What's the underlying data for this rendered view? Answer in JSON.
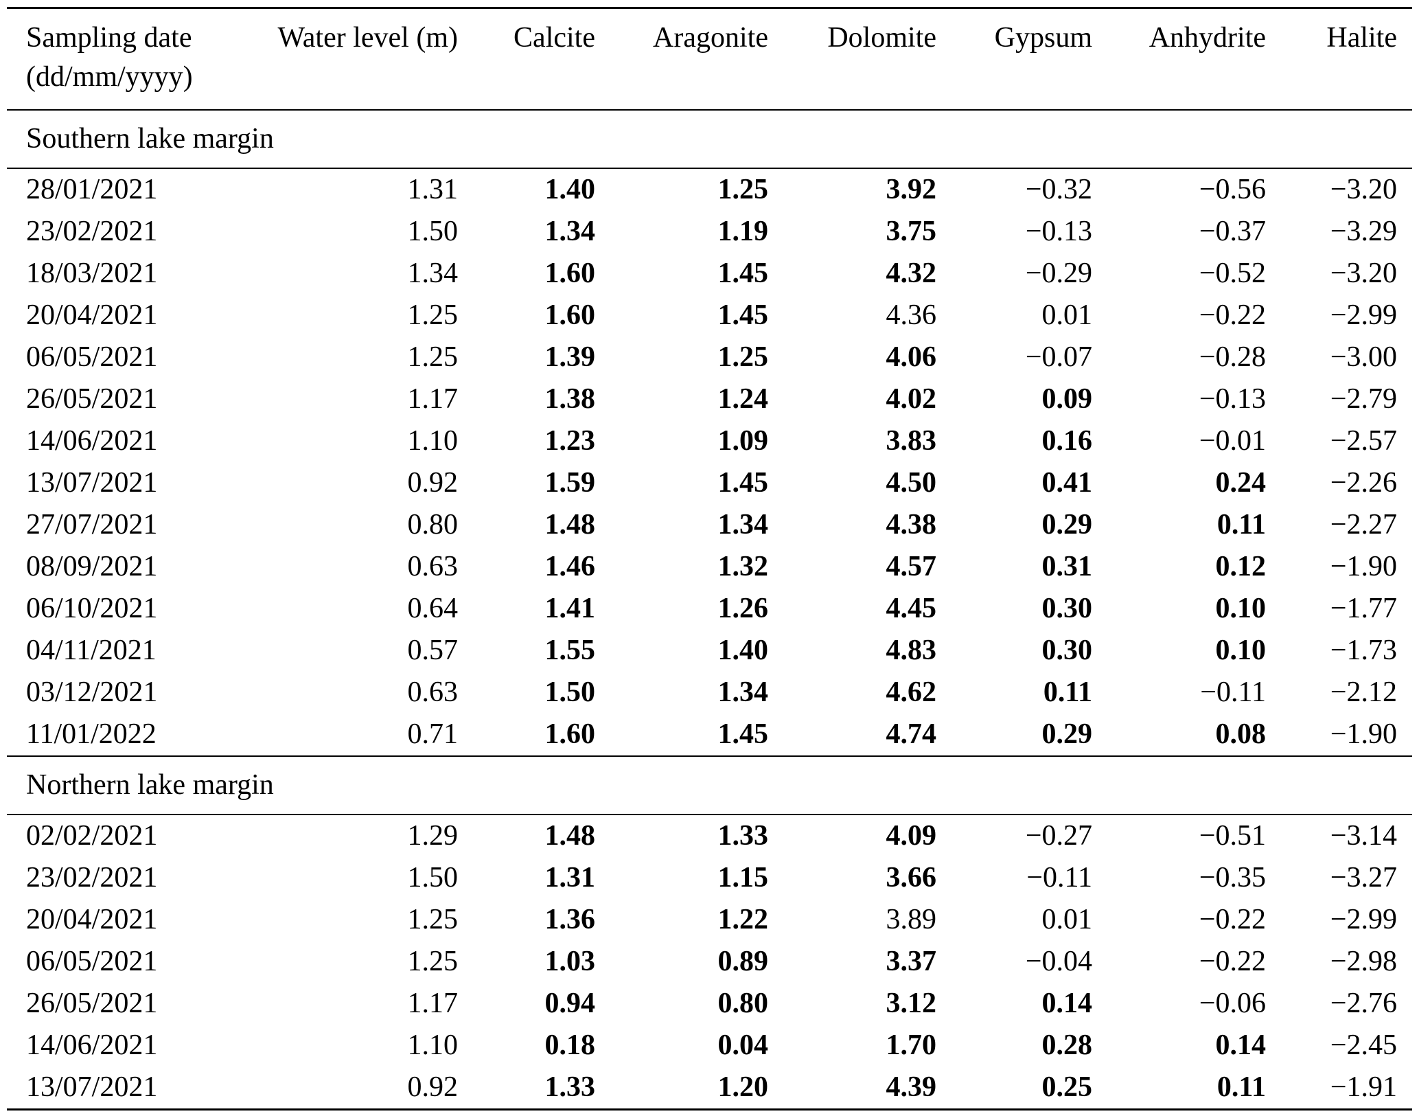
{
  "page": {
    "background": "#ffffff",
    "text_color": "#000000"
  },
  "table": {
    "columns": [
      {
        "label": "Sampling date",
        "sublabel": "(dd/mm/yyyy)",
        "align": "left"
      },
      {
        "label": "Water level (m)",
        "align": "right"
      },
      {
        "label": "Calcite",
        "align": "right"
      },
      {
        "label": "Aragonite",
        "align": "right"
      },
      {
        "label": "Dolomite",
        "align": "right"
      },
      {
        "label": "Gypsum",
        "align": "right"
      },
      {
        "label": "Anhydrite",
        "align": "right"
      },
      {
        "label": "Halite",
        "align": "right"
      }
    ],
    "sections": [
      {
        "title": "Southern lake margin",
        "rows": [
          {
            "cells": [
              {
                "t": "28/01/2021"
              },
              {
                "t": "1.31"
              },
              {
                "t": "1.40",
                "bold": true
              },
              {
                "t": "1.25",
                "bold": true
              },
              {
                "t": "3.92",
                "bold": true
              },
              {
                "t": "−0.32"
              },
              {
                "t": "−0.56"
              },
              {
                "t": "−3.20"
              }
            ]
          },
          {
            "cells": [
              {
                "t": "23/02/2021"
              },
              {
                "t": "1.50"
              },
              {
                "t": "1.34",
                "bold": true
              },
              {
                "t": "1.19",
                "bold": true
              },
              {
                "t": "3.75",
                "bold": true
              },
              {
                "t": "−0.13"
              },
              {
                "t": "−0.37"
              },
              {
                "t": "−3.29"
              }
            ]
          },
          {
            "cells": [
              {
                "t": "18/03/2021"
              },
              {
                "t": "1.34"
              },
              {
                "t": "1.60",
                "bold": true
              },
              {
                "t": "1.45",
                "bold": true
              },
              {
                "t": "4.32",
                "bold": true
              },
              {
                "t": "−0.29"
              },
              {
                "t": "−0.52"
              },
              {
                "t": "−3.20"
              }
            ]
          },
          {
            "cells": [
              {
                "t": "20/04/2021"
              },
              {
                "t": "1.25"
              },
              {
                "t": "1.60",
                "bold": true
              },
              {
                "t": "1.45",
                "bold": true
              },
              {
                "t": "4.36"
              },
              {
                "t": "0.01"
              },
              {
                "t": "−0.22"
              },
              {
                "t": "−2.99"
              }
            ]
          },
          {
            "cells": [
              {
                "t": "06/05/2021"
              },
              {
                "t": "1.25"
              },
              {
                "t": "1.39",
                "bold": true
              },
              {
                "t": "1.25",
                "bold": true
              },
              {
                "t": "4.06",
                "bold": true
              },
              {
                "t": "−0.07"
              },
              {
                "t": "−0.28"
              },
              {
                "t": "−3.00"
              }
            ]
          },
          {
            "cells": [
              {
                "t": "26/05/2021"
              },
              {
                "t": "1.17"
              },
              {
                "t": "1.38",
                "bold": true
              },
              {
                "t": "1.24",
                "bold": true
              },
              {
                "t": "4.02",
                "bold": true
              },
              {
                "t": "0.09",
                "bold": true
              },
              {
                "t": "−0.13"
              },
              {
                "t": "−2.79"
              }
            ]
          },
          {
            "cells": [
              {
                "t": "14/06/2021"
              },
              {
                "t": "1.10"
              },
              {
                "t": "1.23",
                "bold": true
              },
              {
                "t": "1.09",
                "bold": true
              },
              {
                "t": "3.83",
                "bold": true
              },
              {
                "t": "0.16",
                "bold": true
              },
              {
                "t": "−0.01"
              },
              {
                "t": "−2.57"
              }
            ]
          },
          {
            "cells": [
              {
                "t": "13/07/2021"
              },
              {
                "t": "0.92"
              },
              {
                "t": "1.59",
                "bold": true
              },
              {
                "t": "1.45",
                "bold": true
              },
              {
                "t": "4.50",
                "bold": true
              },
              {
                "t": "0.41",
                "bold": true
              },
              {
                "t": "0.24",
                "bold": true
              },
              {
                "t": "−2.26"
              }
            ]
          },
          {
            "cells": [
              {
                "t": "27/07/2021"
              },
              {
                "t": "0.80"
              },
              {
                "t": "1.48",
                "bold": true
              },
              {
                "t": "1.34",
                "bold": true
              },
              {
                "t": "4.38",
                "bold": true
              },
              {
                "t": "0.29",
                "bold": true
              },
              {
                "t": "0.11",
                "bold": true
              },
              {
                "t": "−2.27"
              }
            ]
          },
          {
            "cells": [
              {
                "t": "08/09/2021"
              },
              {
                "t": "0.63"
              },
              {
                "t": "1.46",
                "bold": true
              },
              {
                "t": "1.32",
                "bold": true
              },
              {
                "t": "4.57",
                "bold": true
              },
              {
                "t": "0.31",
                "bold": true
              },
              {
                "t": "0.12",
                "bold": true
              },
              {
                "t": "−1.90"
              }
            ]
          },
          {
            "cells": [
              {
                "t": "06/10/2021"
              },
              {
                "t": "0.64"
              },
              {
                "t": "1.41",
                "bold": true
              },
              {
                "t": "1.26",
                "bold": true
              },
              {
                "t": "4.45",
                "bold": true
              },
              {
                "t": "0.30",
                "bold": true
              },
              {
                "t": "0.10",
                "bold": true
              },
              {
                "t": "−1.77"
              }
            ]
          },
          {
            "cells": [
              {
                "t": "04/11/2021"
              },
              {
                "t": "0.57"
              },
              {
                "t": "1.55",
                "bold": true
              },
              {
                "t": "1.40",
                "bold": true
              },
              {
                "t": "4.83",
                "bold": true
              },
              {
                "t": "0.30",
                "bold": true
              },
              {
                "t": "0.10",
                "bold": true
              },
              {
                "t": "−1.73"
              }
            ]
          },
          {
            "cells": [
              {
                "t": "03/12/2021"
              },
              {
                "t": "0.63"
              },
              {
                "t": "1.50",
                "bold": true
              },
              {
                "t": "1.34",
                "bold": true
              },
              {
                "t": "4.62",
                "bold": true
              },
              {
                "t": "0.11",
                "bold": true
              },
              {
                "t": "−0.11"
              },
              {
                "t": "−2.12"
              }
            ]
          },
          {
            "cells": [
              {
                "t": "11/01/2022"
              },
              {
                "t": "0.71"
              },
              {
                "t": "1.60",
                "bold": true
              },
              {
                "t": "1.45",
                "bold": true
              },
              {
                "t": "4.74",
                "bold": true
              },
              {
                "t": "0.29",
                "bold": true
              },
              {
                "t": "0.08",
                "bold": true
              },
              {
                "t": "−1.90"
              }
            ]
          }
        ]
      },
      {
        "title": "Northern lake margin",
        "rows": [
          {
            "cells": [
              {
                "t": "02/02/2021"
              },
              {
                "t": "1.29"
              },
              {
                "t": "1.48",
                "bold": true
              },
              {
                "t": "1.33",
                "bold": true
              },
              {
                "t": "4.09",
                "bold": true
              },
              {
                "t": "−0.27"
              },
              {
                "t": "−0.51"
              },
              {
                "t": "−3.14"
              }
            ]
          },
          {
            "cells": [
              {
                "t": "23/02/2021"
              },
              {
                "t": "1.50"
              },
              {
                "t": "1.31",
                "bold": true
              },
              {
                "t": "1.15",
                "bold": true
              },
              {
                "t": "3.66",
                "bold": true
              },
              {
                "t": "−0.11"
              },
              {
                "t": "−0.35"
              },
              {
                "t": "−3.27"
              }
            ]
          },
          {
            "cells": [
              {
                "t": "20/04/2021"
              },
              {
                "t": "1.25"
              },
              {
                "t": "1.36",
                "bold": true
              },
              {
                "t": "1.22",
                "bold": true
              },
              {
                "t": "3.89"
              },
              {
                "t": "0.01"
              },
              {
                "t": "−0.22"
              },
              {
                "t": "−2.99"
              }
            ]
          },
          {
            "cells": [
              {
                "t": "06/05/2021"
              },
              {
                "t": "1.25"
              },
              {
                "t": "1.03",
                "bold": true
              },
              {
                "t": "0.89",
                "bold": true
              },
              {
                "t": "3.37",
                "bold": true
              },
              {
                "t": "−0.04"
              },
              {
                "t": "−0.22"
              },
              {
                "t": "−2.98"
              }
            ]
          },
          {
            "cells": [
              {
                "t": "26/05/2021"
              },
              {
                "t": "1.17"
              },
              {
                "t": "0.94",
                "bold": true
              },
              {
                "t": "0.80",
                "bold": true
              },
              {
                "t": "3.12",
                "bold": true
              },
              {
                "t": "0.14",
                "bold": true
              },
              {
                "t": "−0.06"
              },
              {
                "t": "−2.76"
              }
            ]
          },
          {
            "cells": [
              {
                "t": "14/06/2021"
              },
              {
                "t": "1.10"
              },
              {
                "t": "0.18",
                "bold": true
              },
              {
                "t": "0.04",
                "bold": true
              },
              {
                "t": "1.70",
                "bold": true
              },
              {
                "t": "0.28",
                "bold": true
              },
              {
                "t": "0.14",
                "bold": true
              },
              {
                "t": "−2.45"
              }
            ]
          },
          {
            "cells": [
              {
                "t": "13/07/2021"
              },
              {
                "t": "0.92"
              },
              {
                "t": "1.33",
                "bold": true
              },
              {
                "t": "1.20",
                "bold": true
              },
              {
                "t": "4.39",
                "bold": true
              },
              {
                "t": "0.25",
                "bold": true
              },
              {
                "t": "0.11",
                "bold": true
              },
              {
                "t": "−1.91"
              }
            ]
          }
        ]
      }
    ]
  }
}
